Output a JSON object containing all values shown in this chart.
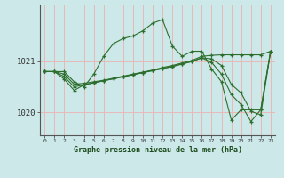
{
  "title": "Graphe pression niveau de la mer (hPa)",
  "background_color": "#cce8e8",
  "grid_color_v": "#e8b8b8",
  "grid_color_h": "#e8b8b8",
  "line_color": "#2d6e2d",
  "xlim": [
    -0.5,
    23.5
  ],
  "ylim": [
    1019.55,
    1022.1
  ],
  "yticks": [
    1020.0,
    1021.0
  ],
  "xticks": [
    0,
    1,
    2,
    3,
    4,
    5,
    6,
    7,
    8,
    9,
    10,
    11,
    12,
    13,
    14,
    15,
    16,
    17,
    18,
    19,
    20,
    21,
    22,
    23
  ],
  "series": [
    [
      1020.8,
      1020.8,
      1020.8,
      1020.6,
      1020.5,
      1020.75,
      1021.1,
      1021.35,
      1021.45,
      1021.5,
      1021.6,
      1021.75,
      1021.82,
      1021.3,
      1021.1,
      1021.2,
      1021.2,
      1020.85,
      1020.6,
      1019.85,
      1020.05,
      1020.05,
      1020.05,
      1021.2
    ],
    [
      1020.8,
      1020.8,
      1020.75,
      1020.55,
      1020.57,
      1020.6,
      1020.63,
      1020.67,
      1020.71,
      1020.75,
      1020.79,
      1020.83,
      1020.88,
      1020.92,
      1020.97,
      1021.02,
      1021.1,
      1021.12,
      1021.13,
      1021.13,
      1021.13,
      1021.13,
      1021.13,
      1021.2
    ],
    [
      1020.8,
      1020.8,
      1020.7,
      1020.5,
      1020.54,
      1020.58,
      1020.62,
      1020.66,
      1020.7,
      1020.74,
      1020.78,
      1020.82,
      1020.86,
      1020.9,
      1020.95,
      1021.0,
      1021.07,
      1021.05,
      1020.92,
      1020.55,
      1020.38,
      1020.02,
      1019.95,
      1021.2
    ],
    [
      1020.8,
      1020.8,
      1020.65,
      1020.43,
      1020.54,
      1020.58,
      1020.62,
      1020.66,
      1020.7,
      1020.74,
      1020.78,
      1020.82,
      1020.86,
      1020.9,
      1020.95,
      1021.0,
      1021.07,
      1020.98,
      1020.75,
      1020.35,
      1020.15,
      1019.82,
      1020.05,
      1021.2
    ]
  ]
}
